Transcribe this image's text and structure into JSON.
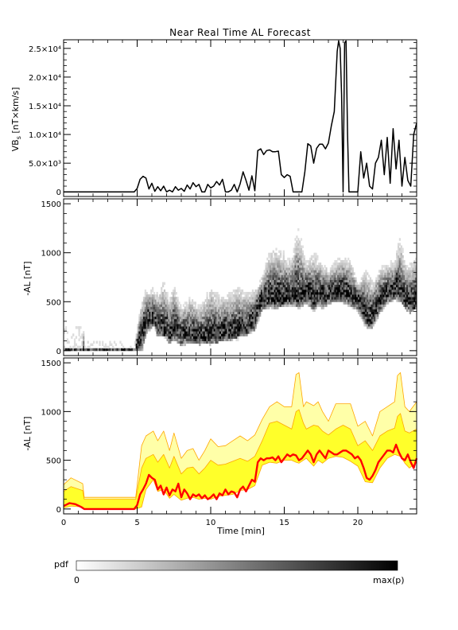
{
  "title": "Near Real Time AL Forecast",
  "colors": {
    "axis": "#000000",
    "median": "#ff0000",
    "band_outer": "#ffffa8",
    "band_inner": "#ffff2a",
    "band_edge": "#ffa500"
  },
  "chart_data": [
    {
      "type": "line",
      "name": "panel-vbs",
      "ylabel": "VB_s [nT×km/s]",
      "ylim": [
        -800,
        26500
      ],
      "xlim": [
        0,
        24
      ],
      "yticks": [
        0,
        5000,
        10000,
        15000,
        20000,
        25000
      ],
      "ytick_labels": [
        "0",
        "5.0×10³",
        "1.0×10⁴",
        "1.5×10⁴",
        "2.0×10⁴",
        "2.5×10⁴"
      ],
      "series": [
        {
          "x": [
            0,
            4.8,
            5.0,
            5.2,
            5.4,
            5.6,
            5.8,
            6.0,
            6.2,
            6.4,
            6.6,
            6.8,
            7.0,
            7.2,
            7.4,
            7.6,
            7.8,
            8.0,
            8.2,
            8.4,
            8.6,
            8.8,
            9.0,
            9.2,
            9.4,
            9.6,
            9.8,
            10.0,
            10.2,
            10.4,
            10.6,
            10.8,
            11.0,
            11.2,
            11.4,
            11.6,
            11.8,
            12.0,
            12.2,
            12.4,
            12.6,
            12.8,
            13.0,
            13.2,
            13.4,
            13.6,
            13.8,
            14.0,
            14.2,
            14.4,
            14.6,
            14.8,
            15.0,
            15.2,
            15.4,
            15.6,
            15.8,
            16.0,
            16.2,
            16.4,
            16.6,
            16.8,
            17.0,
            17.2,
            17.4,
            17.6,
            17.8,
            18.0,
            18.2,
            18.4,
            18.6,
            18.7,
            18.8,
            18.9,
            19.0,
            19.1,
            19.2,
            19.3,
            19.4,
            19.6,
            19.8,
            20.0,
            20.2,
            20.4,
            20.6,
            20.8,
            21.0,
            21.2,
            21.4,
            21.6,
            21.8,
            22.0,
            22.2,
            22.4,
            22.6,
            22.8,
            23.0,
            23.2,
            23.4,
            23.6,
            23.8,
            24.0
          ],
          "y": [
            0,
            0,
            600,
            2200,
            2700,
            2400,
            500,
            1500,
            100,
            900,
            200,
            1000,
            0,
            300,
            0,
            900,
            300,
            600,
            100,
            1200,
            500,
            1600,
            900,
            1300,
            0,
            0,
            1300,
            700,
            1000,
            1800,
            1200,
            2200,
            0,
            0,
            300,
            1300,
            0,
            1400,
            3500,
            2000,
            300,
            2800,
            200,
            7200,
            7500,
            6500,
            7200,
            7300,
            7000,
            7000,
            7100,
            3000,
            2500,
            3000,
            2700,
            0,
            0,
            0,
            0,
            3500,
            8400,
            8000,
            5000,
            7600,
            8300,
            8300,
            7500,
            8500,
            11500,
            14000,
            24500,
            26300,
            25000,
            17000,
            0,
            26000,
            26300,
            10000,
            0,
            0,
            0,
            0,
            7000,
            2400,
            5000,
            1000,
            500,
            5000,
            6000,
            9000,
            3000,
            9500,
            1500,
            11000,
            4000,
            9000,
            1000,
            6000,
            2000,
            1000,
            10000,
            12000
          ]
        }
      ]
    },
    {
      "type": "heatmap",
      "name": "panel-al-pdf",
      "ylabel": "-AL [nT]",
      "ylim": [
        -50,
        1550
      ],
      "xlim": [
        0,
        24
      ],
      "yticks": [
        0,
        500,
        1000,
        1500
      ],
      "ytick_labels": [
        "0",
        "500",
        "1000",
        "1500"
      ],
      "note": "probability density of -AL per time step, white = 0 to black = max(p)"
    },
    {
      "type": "area",
      "name": "panel-al-forecast",
      "ylabel": "-AL [nT]",
      "xlabel": "Time [min]",
      "ylim": [
        -50,
        1550
      ],
      "xlim": [
        0,
        24
      ],
      "xticks": [
        0,
        5,
        10,
        15,
        20
      ],
      "yticks": [
        0,
        500,
        1000,
        1500
      ],
      "ytick_labels": [
        "0",
        "500",
        "1000",
        "1500"
      ],
      "series": [
        {
          "name": "max",
          "x": [
            0,
            0.5,
            1.3,
            1.4,
            4.9,
            5.3,
            5.6,
            6.1,
            6.4,
            6.8,
            7.2,
            7.5,
            8.0,
            8.4,
            8.8,
            9.2,
            9.6,
            10.0,
            10.5,
            11.0,
            11.5,
            12.0,
            12.5,
            13.0,
            13.5,
            14.0,
            14.5,
            15.0,
            15.5,
            15.8,
            16.0,
            16.3,
            16.5,
            17.0,
            17.3,
            17.6,
            18.0,
            18.5,
            19.0,
            19.5,
            20.0,
            20.5,
            21.0,
            21.5,
            22.0,
            22.5,
            22.7,
            22.9,
            23.2,
            23.5,
            24.0
          ],
          "y": [
            250,
            320,
            260,
            120,
            120,
            650,
            750,
            800,
            700,
            800,
            600,
            780,
            520,
            600,
            620,
            500,
            600,
            720,
            640,
            650,
            700,
            750,
            700,
            760,
            920,
            1050,
            1100,
            1050,
            1050,
            1380,
            1400,
            1050,
            1100,
            1060,
            1100,
            1000,
            900,
            1080,
            1080,
            1080,
            850,
            900,
            750,
            1000,
            1050,
            1100,
            1370,
            1400,
            1050,
            1000,
            1100
          ]
        },
        {
          "name": "upper",
          "x": [
            0,
            0.5,
            1.3,
            1.4,
            4.9,
            5.3,
            5.6,
            6.1,
            6.4,
            6.8,
            7.2,
            7.5,
            8.0,
            8.4,
            8.8,
            9.2,
            9.6,
            10.0,
            10.5,
            11.0,
            11.5,
            12.0,
            12.5,
            13.0,
            13.5,
            14.0,
            14.5,
            15.0,
            15.5,
            15.8,
            16.0,
            16.3,
            16.5,
            17.0,
            17.3,
            17.6,
            18.0,
            18.5,
            19.0,
            19.5,
            20.0,
            20.5,
            21.0,
            21.5,
            22.0,
            22.5,
            22.7,
            22.9,
            23.2,
            23.5,
            24.0
          ],
          "y": [
            180,
            230,
            190,
            100,
            100,
            420,
            520,
            560,
            480,
            560,
            420,
            540,
            360,
            420,
            430,
            360,
            420,
            500,
            450,
            460,
            490,
            520,
            490,
            540,
            700,
            880,
            900,
            860,
            820,
            1000,
            1020,
            880,
            820,
            860,
            850,
            800,
            760,
            820,
            860,
            820,
            650,
            700,
            600,
            750,
            800,
            830,
            950,
            980,
            800,
            780,
            820
          ]
        },
        {
          "name": "median",
          "x": [
            0,
            0.4,
            0.8,
            1.2,
            1.4,
            4.8,
            5.0,
            5.2,
            5.4,
            5.6,
            5.8,
            6.0,
            6.2,
            6.4,
            6.6,
            6.8,
            7.0,
            7.2,
            7.4,
            7.6,
            7.8,
            8.0,
            8.2,
            8.4,
            8.6,
            8.8,
            9.0,
            9.2,
            9.4,
            9.6,
            9.8,
            10.0,
            10.2,
            10.4,
            10.6,
            10.8,
            11.0,
            11.2,
            11.4,
            11.6,
            11.8,
            12.0,
            12.2,
            12.4,
            12.6,
            12.8,
            13.0,
            13.2,
            13.4,
            13.6,
            13.8,
            14.0,
            14.2,
            14.4,
            14.6,
            14.8,
            15.0,
            15.2,
            15.4,
            15.6,
            15.8,
            16.0,
            16.2,
            16.4,
            16.6,
            16.8,
            17.0,
            17.2,
            17.4,
            17.6,
            17.8,
            18.0,
            18.2,
            18.4,
            18.6,
            18.8,
            19.0,
            19.2,
            19.4,
            19.6,
            19.8,
            20.0,
            20.2,
            20.4,
            20.6,
            20.8,
            21.0,
            21.2,
            21.4,
            21.6,
            21.8,
            22.0,
            22.2,
            22.4,
            22.6,
            22.8,
            23.0,
            23.2,
            23.4,
            23.6,
            23.8,
            24.0
          ],
          "y": [
            30,
            60,
            50,
            20,
            0,
            0,
            40,
            150,
            200,
            260,
            350,
            320,
            300,
            200,
            240,
            150,
            220,
            140,
            200,
            180,
            260,
            120,
            200,
            160,
            100,
            150,
            130,
            150,
            110,
            140,
            100,
            120,
            150,
            100,
            160,
            140,
            200,
            150,
            180,
            170,
            120,
            200,
            230,
            180,
            240,
            300,
            280,
            480,
            520,
            500,
            520,
            520,
            530,
            500,
            540,
            480,
            520,
            560,
            540,
            560,
            550,
            500,
            520,
            560,
            600,
            560,
            480,
            560,
            600,
            560,
            520,
            600,
            580,
            560,
            560,
            580,
            600,
            600,
            580,
            560,
            520,
            540,
            500,
            420,
            320,
            300,
            340,
            400,
            480,
            520,
            560,
            600,
            600,
            580,
            660,
            580,
            520,
            500,
            560,
            480,
            420,
            520
          ]
        },
        {
          "name": "lower",
          "x": [
            0,
            0.5,
            1.3,
            1.4,
            4.9,
            5.3,
            5.6,
            6.1,
            6.4,
            6.8,
            7.2,
            7.5,
            8.0,
            8.4,
            8.8,
            9.2,
            9.6,
            10.0,
            10.5,
            11.0,
            11.5,
            12.0,
            12.5,
            13.0,
            13.5,
            14.0,
            14.5,
            15.0,
            15.5,
            15.8,
            16.0,
            16.3,
            16.5,
            17.0,
            17.3,
            17.6,
            18.0,
            18.5,
            19.0,
            19.5,
            20.0,
            20.5,
            21.0,
            21.5,
            22.0,
            22.5,
            22.7,
            22.9,
            23.2,
            23.5,
            24.0
          ],
          "y": [
            10,
            30,
            20,
            0,
            0,
            20,
            200,
            300,
            180,
            200,
            110,
            150,
            90,
            110,
            120,
            100,
            110,
            100,
            130,
            140,
            150,
            190,
            200,
            240,
            450,
            480,
            470,
            500,
            500,
            480,
            470,
            500,
            520,
            440,
            500,
            470,
            520,
            540,
            530,
            490,
            440,
            280,
            270,
            420,
            520,
            560,
            550,
            540,
            470,
            420,
            480
          ]
        }
      ]
    }
  ],
  "colorbar": {
    "label": "pdf",
    "min_label": "0",
    "max_label": "max(p)"
  }
}
